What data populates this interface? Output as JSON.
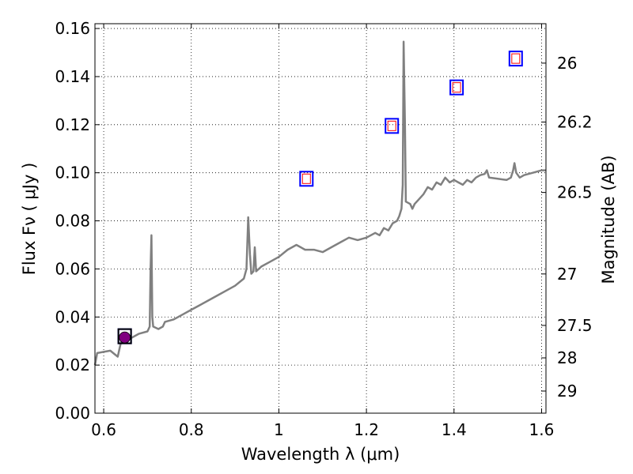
{
  "chart_data": {
    "type": "line",
    "xlabel": "Wavelength  λ (μm)",
    "ylabel": "Flux  Fν  ( μJy )",
    "y2label": "Magnitude (AB)",
    "xlim": [
      0.58,
      1.61
    ],
    "ylim": [
      0.0,
      0.162
    ],
    "grid": true,
    "x_ticks": [
      0.6,
      0.8,
      1.0,
      1.2,
      1.4,
      1.6
    ],
    "x_tick_labels": [
      "0.6",
      "0.8",
      "1",
      "1.2",
      "1.4",
      "1.6"
    ],
    "y_ticks": [
      0.0,
      0.02,
      0.04,
      0.06,
      0.08,
      0.1,
      0.12,
      0.14,
      0.16
    ],
    "y_tick_labels": [
      "0.00",
      "0.02",
      "0.04",
      "0.06",
      "0.08",
      "0.10",
      "0.12",
      "0.14",
      "0.16"
    ],
    "y2_ticks": [
      {
        "label": "26",
        "flux": 0.1456
      },
      {
        "label": "26.2",
        "flux": 0.1211
      },
      {
        "label": "26.5",
        "flux": 0.0918
      },
      {
        "label": "27",
        "flux": 0.0579
      },
      {
        "label": "27.5",
        "flux": 0.0365
      },
      {
        "label": "28",
        "flux": 0.023
      },
      {
        "label": "29",
        "flux": 0.0092
      }
    ],
    "series": [
      {
        "type": "line",
        "color": "#808080",
        "points": [
          [
            0.58,
            0.02
          ],
          [
            0.585,
            0.025
          ],
          [
            0.6,
            0.0255
          ],
          [
            0.615,
            0.026
          ],
          [
            0.625,
            0.0245
          ],
          [
            0.632,
            0.0235
          ],
          [
            0.64,
            0.03
          ],
          [
            0.66,
            0.031
          ],
          [
            0.68,
            0.033
          ],
          [
            0.7,
            0.034
          ],
          [
            0.705,
            0.036
          ],
          [
            0.707,
            0.06
          ],
          [
            0.709,
            0.074
          ],
          [
            0.711,
            0.04
          ],
          [
            0.713,
            0.036
          ],
          [
            0.725,
            0.035
          ],
          [
            0.735,
            0.036
          ],
          [
            0.74,
            0.038
          ],
          [
            0.76,
            0.039
          ],
          [
            0.78,
            0.041
          ],
          [
            0.8,
            0.043
          ],
          [
            0.82,
            0.045
          ],
          [
            0.84,
            0.047
          ],
          [
            0.86,
            0.049
          ],
          [
            0.88,
            0.051
          ],
          [
            0.9,
            0.053
          ],
          [
            0.92,
            0.056
          ],
          [
            0.926,
            0.06
          ],
          [
            0.93,
            0.0815
          ],
          [
            0.934,
            0.066
          ],
          [
            0.937,
            0.058
          ],
          [
            0.942,
            0.059
          ],
          [
            0.945,
            0.069
          ],
          [
            0.948,
            0.059
          ],
          [
            0.96,
            0.061
          ],
          [
            0.98,
            0.063
          ],
          [
            1.0,
            0.065
          ],
          [
            1.02,
            0.068
          ],
          [
            1.04,
            0.07
          ],
          [
            1.06,
            0.068
          ],
          [
            1.08,
            0.068
          ],
          [
            1.1,
            0.067
          ],
          [
            1.12,
            0.069
          ],
          [
            1.14,
            0.071
          ],
          [
            1.16,
            0.073
          ],
          [
            1.18,
            0.072
          ],
          [
            1.2,
            0.073
          ],
          [
            1.22,
            0.075
          ],
          [
            1.23,
            0.074
          ],
          [
            1.24,
            0.077
          ],
          [
            1.25,
            0.076
          ],
          [
            1.26,
            0.079
          ],
          [
            1.27,
            0.08
          ],
          [
            1.275,
            0.082
          ],
          [
            1.28,
            0.085
          ],
          [
            1.283,
            0.095
          ],
          [
            1.285,
            0.1545
          ],
          [
            1.288,
            0.12
          ],
          [
            1.29,
            0.088
          ],
          [
            1.3,
            0.087
          ],
          [
            1.305,
            0.085
          ],
          [
            1.31,
            0.087
          ],
          [
            1.32,
            0.089
          ],
          [
            1.33,
            0.091
          ],
          [
            1.34,
            0.094
          ],
          [
            1.35,
            0.093
          ],
          [
            1.36,
            0.096
          ],
          [
            1.37,
            0.095
          ],
          [
            1.38,
            0.098
          ],
          [
            1.39,
            0.096
          ],
          [
            1.4,
            0.097
          ],
          [
            1.41,
            0.096
          ],
          [
            1.42,
            0.095
          ],
          [
            1.43,
            0.097
          ],
          [
            1.44,
            0.096
          ],
          [
            1.45,
            0.098
          ],
          [
            1.46,
            0.099
          ],
          [
            1.47,
            0.0995
          ],
          [
            1.475,
            0.101
          ],
          [
            1.48,
            0.098
          ],
          [
            1.5,
            0.0975
          ],
          [
            1.52,
            0.097
          ],
          [
            1.53,
            0.098
          ],
          [
            1.535,
            0.101
          ],
          [
            1.538,
            0.104
          ],
          [
            1.542,
            0.1
          ],
          [
            1.55,
            0.098
          ],
          [
            1.56,
            0.099
          ],
          [
            1.58,
            0.1
          ],
          [
            1.6,
            0.101
          ],
          [
            1.61,
            0.101
          ]
        ]
      },
      {
        "type": "scatter",
        "marker": "open-square",
        "color": "#0000ff",
        "points": [
          [
            0.648,
            0.032
          ],
          [
            1.063,
            0.0975
          ],
          [
            1.258,
            0.1195
          ],
          [
            1.406,
            0.1355
          ],
          [
            1.541,
            0.1475
          ]
        ]
      },
      {
        "type": "scatter",
        "marker": "small-open-square",
        "color": "#ff0000",
        "points": [
          [
            1.063,
            0.0975
          ],
          [
            1.258,
            0.1195
          ],
          [
            1.406,
            0.1355
          ],
          [
            1.541,
            0.1475
          ]
        ]
      },
      {
        "type": "scatter",
        "marker": "open-square",
        "color": "#000000",
        "points": [
          [
            0.648,
            0.032
          ]
        ]
      },
      {
        "type": "scatter",
        "marker": "filled-circle",
        "color": "#800080",
        "points": [
          [
            0.648,
            0.0315
          ]
        ]
      }
    ]
  }
}
